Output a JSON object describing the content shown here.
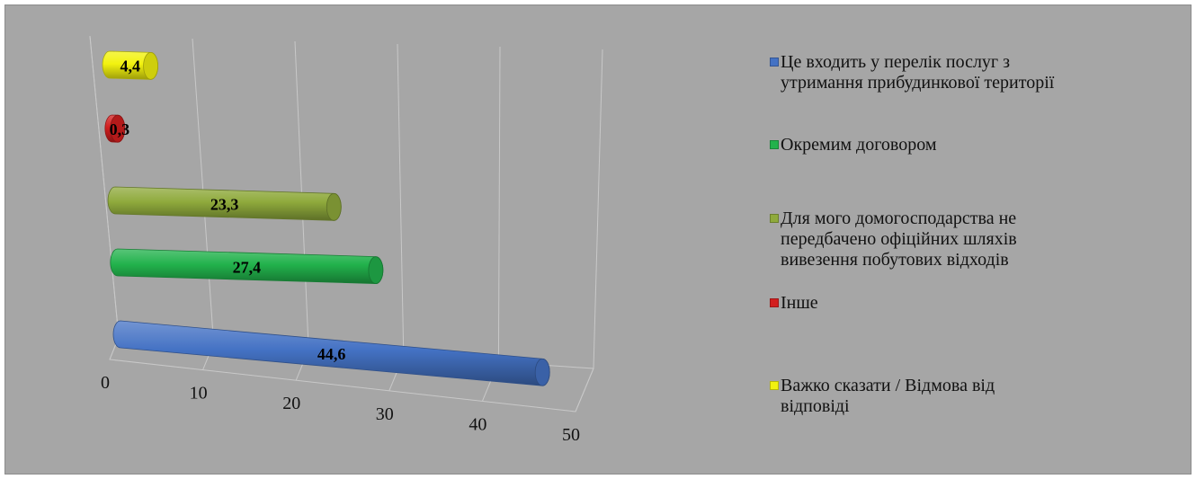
{
  "chart_data": {
    "type": "bar",
    "orientation": "horizontal",
    "style": "3d-cylinder",
    "x_ticks": [
      "0",
      "10",
      "20",
      "30",
      "40",
      "50"
    ],
    "xlim": [
      0,
      50
    ],
    "grid": true,
    "legend_position": "right",
    "series": [
      {
        "name": "Це входить у перелік послуг з утримання прибудинкової території",
        "value": 44.6,
        "label": "44,6",
        "color": "#4472c4"
      },
      {
        "name": "Окремим договором",
        "value": 27.4,
        "label": "27,4",
        "color": "#22b24c"
      },
      {
        "name": "Для мого домогосподарства не передбачено офіційних шляхів вивезення побутових відходів",
        "value": 23.3,
        "label": "23,3",
        "color": "#8faa3c"
      },
      {
        "name": "Інше",
        "value": 0.3,
        "label": "0,3",
        "color": "#d21f1f"
      },
      {
        "name": "Важко сказати / Відмова від відповіді",
        "value": 4.4,
        "label": "4,4",
        "color": "#f2f20f"
      }
    ]
  },
  "legend": {
    "items": [
      {
        "text": "Це входить у перелік послуг з\nутримання прибудинкової території",
        "color": "#4472c4"
      },
      {
        "text": "Окремим договором",
        "color": "#22b24c"
      },
      {
        "text": "Для мого домогосподарства не\nпередбачено офіційних шляхів\nвивезення побутових відходів",
        "color": "#8faa3c"
      },
      {
        "text": "Інше",
        "color": "#d21f1f"
      },
      {
        "text": "Важко сказати / Відмова від\nвідповіді",
        "color": "#f2f20f"
      }
    ]
  }
}
